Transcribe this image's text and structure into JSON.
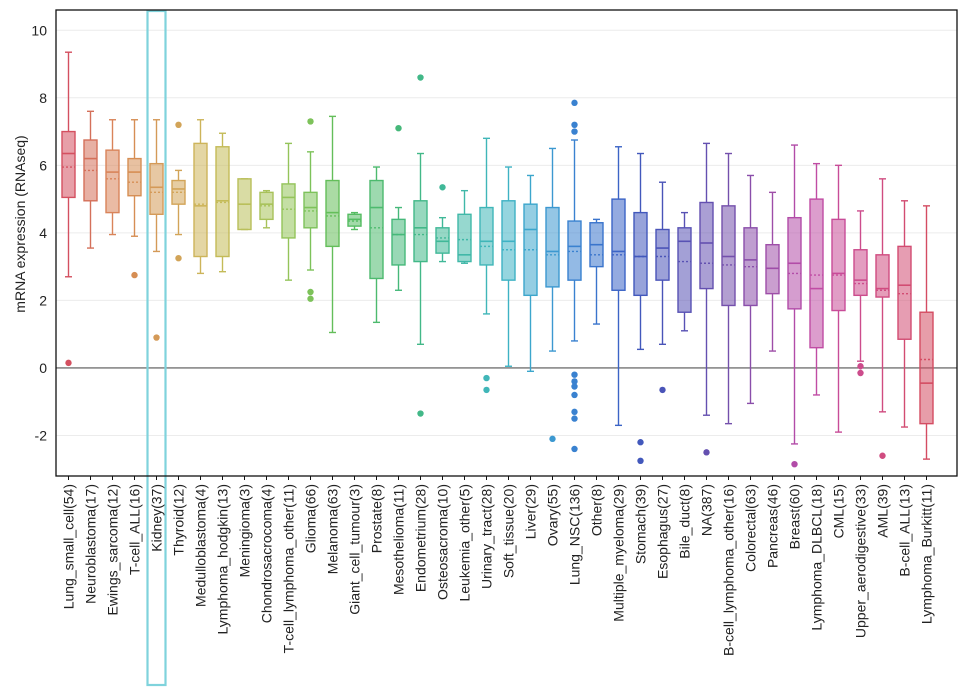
{
  "chart_data": {
    "type": "box",
    "ylabel": "mRNA expression (RNAseq)",
    "xlabel": "",
    "ylim": [
      -3.2,
      10.6
    ],
    "yticks": [
      -2,
      0,
      2,
      4,
      6,
      8,
      10
    ],
    "grid": "horizontal",
    "zero_line": true,
    "highlighted_category": "Kidney(37)",
    "highlight_color": "#7fd3dc",
    "categories": [
      {
        "label": "Lung_small_cell(54)",
        "color": "#d45060",
        "whisker_low": 2.7,
        "q1": 5.05,
        "median": 6.35,
        "mean": 5.95,
        "q3": 7.0,
        "whisker_high": 9.35,
        "outliers": [
          0.15
        ]
      },
      {
        "label": "Neuroblastoma(17)",
        "color": "#d4705a",
        "whisker_low": 3.55,
        "q1": 4.95,
        "median": 6.2,
        "mean": 5.85,
        "q3": 6.75,
        "whisker_high": 7.6,
        "outliers": []
      },
      {
        "label": "Ewings_sarcoma(12)",
        "color": "#d9845a",
        "whisker_low": 3.95,
        "q1": 4.6,
        "median": 5.8,
        "mean": 5.6,
        "q3": 6.45,
        "whisker_high": 7.35,
        "outliers": []
      },
      {
        "label": "T-cell_ALL(16)",
        "color": "#d68e54",
        "whisker_low": 3.9,
        "q1": 5.1,
        "median": 5.8,
        "mean": 5.5,
        "q3": 6.2,
        "whisker_high": 7.35,
        "outliers": [
          2.75
        ]
      },
      {
        "label": "Kidney(37)",
        "color": "#d49a58",
        "whisker_low": 3.45,
        "q1": 4.55,
        "median": 5.35,
        "mean": 5.2,
        "q3": 6.05,
        "whisker_high": 7.35,
        "outliers": [
          0.9
        ]
      },
      {
        "label": "Thyroid(12)",
        "color": "#d2a458",
        "whisker_low": 3.95,
        "q1": 4.85,
        "median": 5.3,
        "mean": 5.2,
        "q3": 5.55,
        "whisker_high": 5.85,
        "outliers": [
          7.2,
          3.25
        ]
      },
      {
        "label": "Medulloblastoma(4)",
        "color": "#cdb45a",
        "whisker_low": 2.8,
        "q1": 3.3,
        "median": 4.8,
        "mean": 4.85,
        "q3": 6.65,
        "whisker_high": 7.35,
        "outliers": []
      },
      {
        "label": "Lymphoma_hodgkin(13)",
        "color": "#c4bb58",
        "whisker_low": 2.85,
        "q1": 3.3,
        "median": 4.95,
        "mean": 4.9,
        "q3": 6.55,
        "whisker_high": 6.95,
        "outliers": []
      },
      {
        "label": "Meningioma(3)",
        "color": "#b9bf5a",
        "whisker_low": 4.1,
        "q1": 4.1,
        "median": 4.85,
        "mean": 4.85,
        "q3": 5.6,
        "whisker_high": 5.6,
        "outliers": []
      },
      {
        "label": "Chondrosacrocoma(4)",
        "color": "#a8c25a",
        "whisker_low": 4.15,
        "q1": 4.4,
        "median": 4.85,
        "mean": 4.8,
        "q3": 5.2,
        "whisker_high": 5.25,
        "outliers": []
      },
      {
        "label": "T-cell_lymphoma_other(11)",
        "color": "#94c45a",
        "whisker_low": 2.6,
        "q1": 3.85,
        "median": 5.05,
        "mean": 4.7,
        "q3": 5.45,
        "whisker_high": 6.65,
        "outliers": []
      },
      {
        "label": "Glioma(66)",
        "color": "#7dc25a",
        "whisker_low": 2.9,
        "q1": 4.15,
        "median": 4.75,
        "mean": 4.65,
        "q3": 5.2,
        "whisker_high": 6.4,
        "outliers": [
          7.3,
          2.25,
          2.05
        ]
      },
      {
        "label": "Melanoma(63)",
        "color": "#64be5a",
        "whisker_low": 1.05,
        "q1": 3.6,
        "median": 4.6,
        "mean": 4.5,
        "q3": 5.55,
        "whisker_high": 7.45,
        "outliers": []
      },
      {
        "label": "Giant_cell_tumour(3)",
        "color": "#55bc62",
        "whisker_low": 4.1,
        "q1": 4.2,
        "median": 4.4,
        "mean": 4.35,
        "q3": 4.55,
        "whisker_high": 4.6,
        "outliers": []
      },
      {
        "label": "Prostate(8)",
        "color": "#4dba6e",
        "whisker_low": 1.35,
        "q1": 2.65,
        "median": 4.75,
        "mean": 4.15,
        "q3": 5.55,
        "whisker_high": 5.95,
        "outliers": []
      },
      {
        "label": "Mesothelioma(11)",
        "color": "#46b87a",
        "whisker_low": 2.3,
        "q1": 3.05,
        "median": 3.95,
        "mean": 3.95,
        "q3": 4.4,
        "whisker_high": 4.75,
        "outliers": [
          7.1
        ]
      },
      {
        "label": "Endometrium(28)",
        "color": "#42b888",
        "whisker_low": 0.7,
        "q1": 3.15,
        "median": 4.15,
        "mean": 3.95,
        "q3": 4.95,
        "whisker_high": 6.35,
        "outliers": [
          8.6,
          -1.35
        ]
      },
      {
        "label": "Osteosacroma(10)",
        "color": "#40b898",
        "whisker_low": 3.15,
        "q1": 3.4,
        "median": 3.75,
        "mean": 3.85,
        "q3": 4.15,
        "whisker_high": 4.45,
        "outliers": [
          5.35
        ]
      },
      {
        "label": "Leukemia_other(5)",
        "color": "#40b8a8",
        "whisker_low": 3.1,
        "q1": 3.15,
        "median": 3.35,
        "mean": 3.8,
        "q3": 4.55,
        "whisker_high": 5.25,
        "outliers": []
      },
      {
        "label": "Urinary_tract(28)",
        "color": "#40b6b8",
        "whisker_low": 1.6,
        "q1": 3.05,
        "median": 3.75,
        "mean": 3.6,
        "q3": 4.75,
        "whisker_high": 6.8,
        "outliers": [
          -0.3,
          -0.65
        ]
      },
      {
        "label": "Soft_tissue(20)",
        "color": "#3eb2c4",
        "whisker_low": 0.05,
        "q1": 2.6,
        "median": 3.75,
        "mean": 3.5,
        "q3": 4.95,
        "whisker_high": 5.95,
        "outliers": []
      },
      {
        "label": "Liver(29)",
        "color": "#3ca6cc",
        "whisker_low": -0.1,
        "q1": 2.15,
        "median": 4.1,
        "mean": 3.5,
        "q3": 4.85,
        "whisker_high": 5.7,
        "outliers": []
      },
      {
        "label": "Ovary(55)",
        "color": "#3c98d0",
        "whisker_low": 0.5,
        "q1": 2.4,
        "median": 3.45,
        "mean": 3.35,
        "q3": 4.75,
        "whisker_high": 6.5,
        "outliers": [
          -2.1
        ]
      },
      {
        "label": "Lung_NSC(136)",
        "color": "#3a82d0",
        "whisker_low": 0.8,
        "q1": 2.6,
        "median": 3.6,
        "mean": 3.45,
        "q3": 4.35,
        "whisker_high": 6.75,
        "outliers": [
          7.85,
          7.2,
          7.0,
          -0.2,
          -0.4,
          -0.55,
          -0.8,
          -1.3,
          -1.5,
          -2.4
        ]
      },
      {
        "label": "Other(8)",
        "color": "#3a74cc",
        "whisker_low": 1.3,
        "q1": 3.0,
        "median": 3.65,
        "mean": 3.35,
        "q3": 4.3,
        "whisker_high": 4.4,
        "outliers": []
      },
      {
        "label": "Multiple_myeloma(29)",
        "color": "#3c64c6",
        "whisker_low": -1.7,
        "q1": 2.3,
        "median": 3.45,
        "mean": 3.35,
        "q3": 5.0,
        "whisker_high": 6.55,
        "outliers": []
      },
      {
        "label": "Stomach(39)",
        "color": "#4258bc",
        "whisker_low": 0.55,
        "q1": 2.15,
        "median": 3.3,
        "mean": 3.3,
        "q3": 4.6,
        "whisker_high": 6.35,
        "outliers": [
          -2.2,
          -2.75
        ]
      },
      {
        "label": "Esophagus(27)",
        "color": "#4a54b8",
        "whisker_low": 0.7,
        "q1": 2.6,
        "median": 3.55,
        "mean": 3.3,
        "q3": 4.1,
        "whisker_high": 5.5,
        "outliers": [
          -0.65
        ]
      },
      {
        "label": "Bile_duct(8)",
        "color": "#5852b4",
        "whisker_low": 1.1,
        "q1": 1.65,
        "median": 3.75,
        "mean": 3.15,
        "q3": 4.15,
        "whisker_high": 4.6,
        "outliers": []
      },
      {
        "label": "NA(387)",
        "color": "#6450b0",
        "whisker_low": -1.4,
        "q1": 2.35,
        "median": 3.7,
        "mean": 3.1,
        "q3": 4.9,
        "whisker_high": 6.65,
        "outliers": [
          -2.5
        ]
      },
      {
        "label": "B-cell_lymphoma_other(16)",
        "color": "#7450ac",
        "whisker_low": -1.65,
        "q1": 1.85,
        "median": 3.3,
        "mean": 3.05,
        "q3": 4.8,
        "whisker_high": 6.35,
        "outliers": []
      },
      {
        "label": "Colorectal(63)",
        "color": "#8a4eaa",
        "whisker_low": -1.05,
        "q1": 1.85,
        "median": 3.2,
        "mean": 3.0,
        "q3": 4.15,
        "whisker_high": 5.7,
        "outliers": []
      },
      {
        "label": "Pancreas(46)",
        "color": "#9e4ea8",
        "whisker_low": 0.5,
        "q1": 2.2,
        "median": 2.95,
        "mean": 2.95,
        "q3": 3.65,
        "whisker_high": 5.2,
        "outliers": []
      },
      {
        "label": "Breast(60)",
        "color": "#b24ca8",
        "whisker_low": -2.25,
        "q1": 1.75,
        "median": 3.1,
        "mean": 2.8,
        "q3": 4.45,
        "whisker_high": 6.6,
        "outliers": [
          -2.85
        ]
      },
      {
        "label": "Lymphoma_DLBCL(18)",
        "color": "#c04ca4",
        "whisker_low": -0.8,
        "q1": 0.6,
        "median": 2.35,
        "mean": 2.75,
        "q3": 5.0,
        "whisker_high": 6.05,
        "outliers": []
      },
      {
        "label": "CML(15)",
        "color": "#c84c98",
        "whisker_low": -1.9,
        "q1": 1.7,
        "median": 2.8,
        "mean": 2.75,
        "q3": 4.4,
        "whisker_high": 6.0,
        "outliers": []
      },
      {
        "label": "Upper_aerodigestive(33)",
        "color": "#cc4c8c",
        "whisker_low": 0.2,
        "q1": 2.15,
        "median": 2.6,
        "mean": 2.5,
        "q3": 3.5,
        "whisker_high": 4.65,
        "outliers": [
          0.05,
          -0.15
        ]
      },
      {
        "label": "AML(39)",
        "color": "#d04c80",
        "whisker_low": -1.3,
        "q1": 2.1,
        "median": 2.35,
        "mean": 2.3,
        "q3": 3.35,
        "whisker_high": 5.6,
        "outliers": [
          -2.6
        ]
      },
      {
        "label": "B-cell_ALL(13)",
        "color": "#d24c72",
        "whisker_low": -1.75,
        "q1": 0.85,
        "median": 2.45,
        "mean": 2.2,
        "q3": 3.6,
        "whisker_high": 4.95,
        "outliers": []
      },
      {
        "label": "Lymphoma_Burkitt(11)",
        "color": "#d44c62",
        "whisker_low": -2.7,
        "q1": -1.65,
        "median": -0.45,
        "mean": 0.25,
        "q3": 1.65,
        "whisker_high": 4.8,
        "outliers": []
      }
    ]
  }
}
